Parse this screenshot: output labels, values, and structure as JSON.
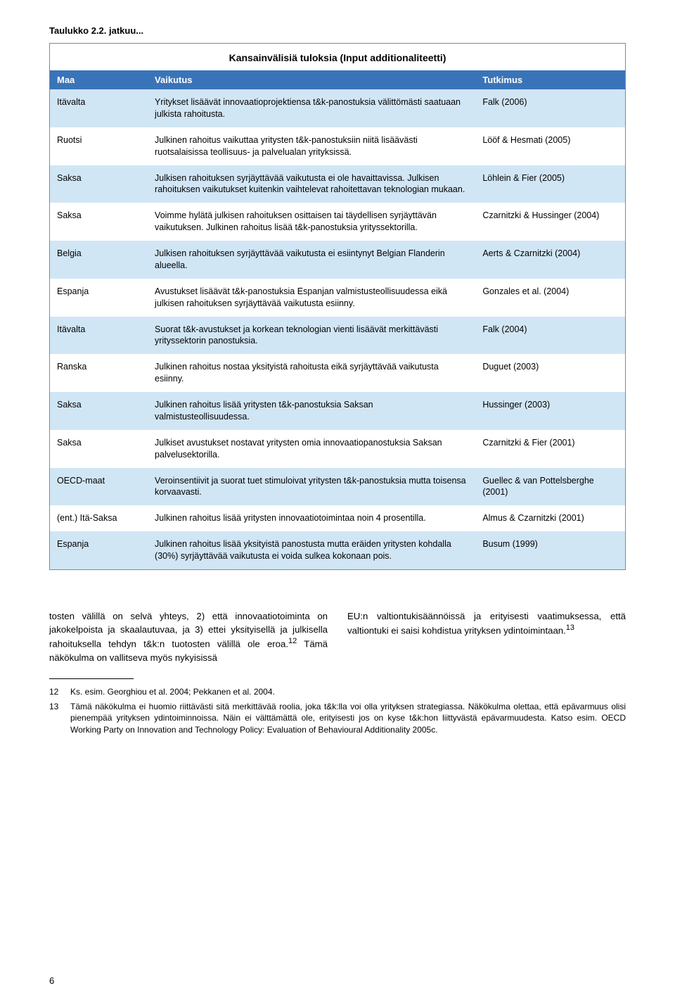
{
  "caption": "Taulukko 2.2. jatkuu...",
  "table": {
    "title": "Kansainvälisiä tuloksia (Input additionaliteetti)",
    "title_bg": "#ffffff",
    "header_bg": "#3a74b8",
    "header_fg": "#ffffff",
    "row_bg_even": "#d1e6f5",
    "row_bg_odd": "#ffffff",
    "col_widths": [
      "17%",
      "57%",
      "26%"
    ],
    "columns": [
      "Maa",
      "Vaikutus",
      "Tutkimus"
    ],
    "rows": [
      {
        "maa": "Itävalta",
        "vaikutus": "Yritykset lisäävät innovaatioprojektiensa t&k-panostuksia välittömästi saatuaan julkista rahoitusta.",
        "tutkimus": "Falk (2006)"
      },
      {
        "maa": "Ruotsi",
        "vaikutus": "Julkinen rahoitus vaikuttaa yritysten t&k-panostuksiin niitä lisäävästi ruotsalaisissa teollisuus- ja palvelualan yrityksissä.",
        "tutkimus": "Lööf & Hesmati (2005)"
      },
      {
        "maa": "Saksa",
        "vaikutus": "Julkisen rahoituksen syrjäyttävää vaikutusta ei ole havaittavissa. Julkisen rahoituksen vaikutukset kuitenkin vaihtelevat rahoitettavan teknologian mukaan.",
        "tutkimus": "Löhlein & Fier (2005)"
      },
      {
        "maa": "Saksa",
        "vaikutus": "Voimme hylätä julkisen rahoituksen osittaisen tai täydellisen syrjäyttävän vaikutuksen. Julkinen rahoitus lisää t&k-panostuksia yrityssektorilla.",
        "tutkimus": "Czarnitzki & Hussinger (2004)"
      },
      {
        "maa": "Belgia",
        "vaikutus": "Julkisen rahoituksen syrjäyttävää vaikutusta ei esiintynyt Belgian Flanderin alueella.",
        "tutkimus": "Aerts & Czarnitzki (2004)"
      },
      {
        "maa": "Espanja",
        "vaikutus": "Avustukset lisäävät t&k-panostuksia Espanjan valmistusteollisuudessa eikä julkisen rahoituksen syrjäyttävää vaikutusta esiinny.",
        "tutkimus": "Gonzales et al. (2004)"
      },
      {
        "maa": "Itävalta",
        "vaikutus": "Suorat t&k-avustukset ja korkean teknologian vienti lisäävät merkittävästi yrityssektorin panostuksia.",
        "tutkimus": "Falk (2004)"
      },
      {
        "maa": "Ranska",
        "vaikutus": "Julkinen rahoitus nostaa yksityistä rahoitusta eikä syrjäyttävää vaikutusta esiinny.",
        "tutkimus": "Duguet (2003)"
      },
      {
        "maa": "Saksa",
        "vaikutus": "Julkinen rahoitus lisää yritysten t&k-panostuksia Saksan valmistusteollisuudessa.",
        "tutkimus": "Hussinger (2003)"
      },
      {
        "maa": "Saksa",
        "vaikutus": "Julkiset avustukset nostavat yritysten omia innovaatiopanostuksia Saksan palvelusektorilla.",
        "tutkimus": "Czarnitzki & Fier (2001)"
      },
      {
        "maa": "OECD-maat",
        "vaikutus": "Veroinsentiivit ja suorat tuet stimuloivat yritysten t&k-panostuksia mutta toisensa korvaavasti.",
        "tutkimus": "Guellec & van Pottelsberghe (2001)"
      },
      {
        "maa": "(ent.) Itä-Saksa",
        "vaikutus": "Julkinen rahoitus lisää yritysten innovaatiotoimintaa noin 4 prosentilla.",
        "tutkimus": "Almus & Czarnitzki (2001)"
      },
      {
        "maa": "Espanja",
        "vaikutus": "Julkinen rahoitus lisää yksityistä panostusta mutta eräiden yritysten kohdalla (30%) syrjäyttävää vaikutusta ei voida sulkea kokonaan pois.",
        "tutkimus": "Busum (1999)"
      }
    ]
  },
  "body": {
    "left_pre": "tosten välillä on selvä yhteys, 2) että innovaatiotoiminta on jakokelpoista ja skaalautuvaa, ja 3) ettei yksityisellä ja julkisella rahoituksella tehdyn t&k:n tuotosten välillä ole eroa.",
    "left_sup": "12",
    "left_post": " Tämä näkökulma on vallitseva myös nykyisissä",
    "right_pre": "EU:n valtiontukisäännöissä ja erityisesti vaatimuksessa, että valtiontuki ei saisi kohdistua yrityksen ydintoimintaan.",
    "right_sup": "13"
  },
  "footnotes": [
    {
      "num": "12",
      "text": "Ks. esim. Georghiou et al. 2004; Pekkanen et al. 2004."
    },
    {
      "num": "13",
      "text": "Tämä näkökulma ei huomio riittävästi sitä merkittävää roolia, joka t&k:lla voi olla yrityksen strategiassa. Näkökulma olettaa, että epävarmuus olisi pienempää yrityksen ydintoiminnoissa. Näin ei välttämättä ole, erityisesti jos on kyse t&k:hon liittyvästä epävarmuudesta. Katso esim. OECD Working Party on Innovation and Technology Policy: Evaluation of Behavioural Additionality 2005c."
    }
  ],
  "page_number": "6"
}
